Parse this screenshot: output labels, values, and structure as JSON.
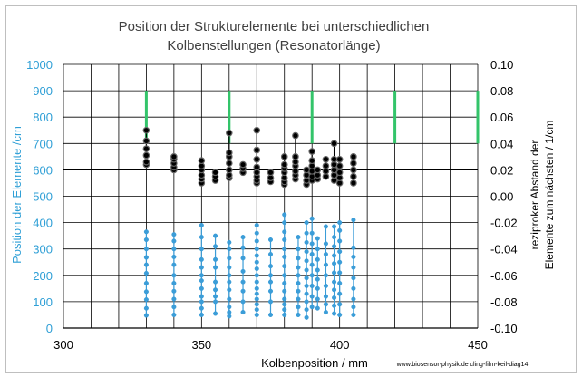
{
  "chart_data": {
    "type": "scatter",
    "title_line1": "Position der Strukturelemente bei unterschiedlichen",
    "title_line2": "Kolbenstellungen (Resonatorlänge)",
    "xlabel": "Kolbenposition / mm",
    "ylabel_left": "Position der Elemente /cm",
    "ylabel_right_line1": "reziproker Abstand der",
    "ylabel_right_line2": "Elemente zum nächsten / 1/cm",
    "footnote": "www.biosensor-physik.de cling-film-keil-diag14",
    "xlim": [
      300,
      450
    ],
    "ylim_left": [
      0,
      1000
    ],
    "ylim_right": [
      -0.1,
      0.1
    ],
    "x_ticks": [
      "300",
      "350",
      "400",
      "450"
    ],
    "y_left_ticks": [
      "0",
      "100",
      "200",
      "300",
      "400",
      "500",
      "600",
      "700",
      "800",
      "900",
      "1000"
    ],
    "y_right_ticks": [
      "-0.10",
      "-0.08",
      "-0.06",
      "-0.04",
      "-0.02",
      "0.00",
      "0.02",
      "0.04",
      "0.06",
      "0.08",
      "0.10"
    ],
    "grid": true,
    "colors": {
      "blue": "#3b9dd8",
      "black": "#000000",
      "green": "#33c46a",
      "axis_blue": "#2f9fd6"
    },
    "series": [
      {
        "kind": "left-axis-points",
        "color": "#3b9dd8",
        "columns": [
          {
            "x": 330,
            "y": [
              48,
              75,
              108,
              138,
              170,
              208,
              240,
              268,
              300,
              335,
              365
            ]
          },
          {
            "x": 340,
            "y": [
              50,
              80,
              110,
              140,
              170,
              200,
              240,
              270,
              300,
              330,
              355
            ]
          },
          {
            "x": 350,
            "y": [
              50,
              75,
              100,
              120,
              150,
              180,
              200,
              230,
              260,
              300,
              345,
              390
            ]
          },
          {
            "x": 355,
            "y": [
              55,
              100,
              120,
              145,
              175,
              230,
              260,
              310,
              350
            ]
          },
          {
            "x": 360,
            "y": [
              45,
              60,
              80,
              110,
              145,
              175,
              200,
              230,
              265,
              300,
              325
            ]
          },
          {
            "x": 365,
            "y": [
              60,
              100,
              140,
              175,
              215,
              265,
              305,
              345
            ]
          },
          {
            "x": 370,
            "y": [
              50,
              70,
              90,
              110,
              130,
              150,
              175,
              200,
              225,
              250,
              275,
              300,
              330,
              360,
              390
            ]
          },
          {
            "x": 375,
            "y": [
              50,
              100,
              140,
              175,
              200,
              235,
              280,
              335
            ]
          },
          {
            "x": 380,
            "y": [
              50,
              70,
              90,
              110,
              140,
              170,
              200,
              235,
              270,
              300,
              335,
              365,
              400,
              430
            ]
          },
          {
            "x": 385,
            "y": [
              50,
              80,
              110,
              140,
              170,
              200,
              230,
              265,
              300,
              345
            ]
          },
          {
            "x": 388,
            "y": [
              40,
              70,
              100,
              130,
              160,
              190,
              220,
              255,
              290,
              325,
              360,
              400
            ]
          },
          {
            "x": 390,
            "y": [
              80,
              120,
              160,
              200,
              240,
              280,
              320,
              360,
              415
            ]
          },
          {
            "x": 392,
            "y": [
              75,
              110,
              150,
              185,
              220,
              260,
              300,
              340
            ]
          },
          {
            "x": 395,
            "y": [
              60,
              90,
              120,
              160,
              200,
              240,
              280,
              320,
              385
            ]
          },
          {
            "x": 398,
            "y": [
              55,
              85,
              115,
              145,
              175,
              210,
              245,
              275,
              310,
              345,
              385
            ]
          },
          {
            "x": 400,
            "y": [
              50,
              90,
              130,
              170,
              210,
              250,
              290,
              330,
              370,
              400
            ]
          },
          {
            "x": 405,
            "y": [
              50,
              80,
              110,
              150,
              190,
              230,
              270,
              305,
              410
            ]
          }
        ]
      },
      {
        "kind": "left-axis-points",
        "color": "#000000",
        "columns": [
          {
            "x": 330,
            "y": [
              620,
              630,
              655,
              680,
              710,
              750
            ]
          },
          {
            "x": 340,
            "y": [
              600,
              610,
              625,
              640,
              650
            ]
          },
          {
            "x": 350,
            "y": [
              550,
              565,
              580,
              600,
              615,
              635
            ]
          },
          {
            "x": 355,
            "y": [
              560,
              575,
              590
            ]
          },
          {
            "x": 360,
            "y": [
              570,
              580,
              600,
              625,
              650,
              665,
              740
            ]
          },
          {
            "x": 365,
            "y": [
              590,
              605,
              620
            ]
          },
          {
            "x": 370,
            "y": [
              550,
              560,
              575,
              590,
              610,
              640,
              675,
              750
            ]
          },
          {
            "x": 375,
            "y": [
              555,
              570,
              590
            ]
          },
          {
            "x": 380,
            "y": [
              545,
              555,
              570,
              590,
              605,
              620,
              650
            ]
          },
          {
            "x": 384,
            "y": [
              565,
              580,
              595,
              615,
              630,
              650,
              730
            ]
          },
          {
            "x": 388,
            "y": [
              545,
              560,
              580,
              600
            ]
          },
          {
            "x": 390,
            "y": [
              560,
              575,
              595,
              615,
              635,
              670
            ]
          },
          {
            "x": 392,
            "y": [
              565,
              580,
              600
            ]
          },
          {
            "x": 395,
            "y": [
              575,
              595,
              615,
              640
            ]
          },
          {
            "x": 398,
            "y": [
              560,
              580,
              600,
              620,
              640,
              700
            ]
          },
          {
            "x": 400,
            "y": [
              550,
              570,
              590,
              615,
              640
            ]
          },
          {
            "x": 405,
            "y": [
              550,
              575,
              600,
              625,
              650
            ]
          }
        ]
      },
      {
        "kind": "right-axis-bars",
        "color": "#33c46a",
        "bars": [
          {
            "x": 330,
            "y0": 0.04,
            "y1": 0.08
          },
          {
            "x": 360,
            "y0": 0.04,
            "y1": 0.08
          },
          {
            "x": 390,
            "y0": 0.04,
            "y1": 0.08
          },
          {
            "x": 420,
            "y0": 0.04,
            "y1": 0.08
          },
          {
            "x": 450,
            "y0": 0.04,
            "y1": 0.08
          }
        ]
      }
    ]
  }
}
